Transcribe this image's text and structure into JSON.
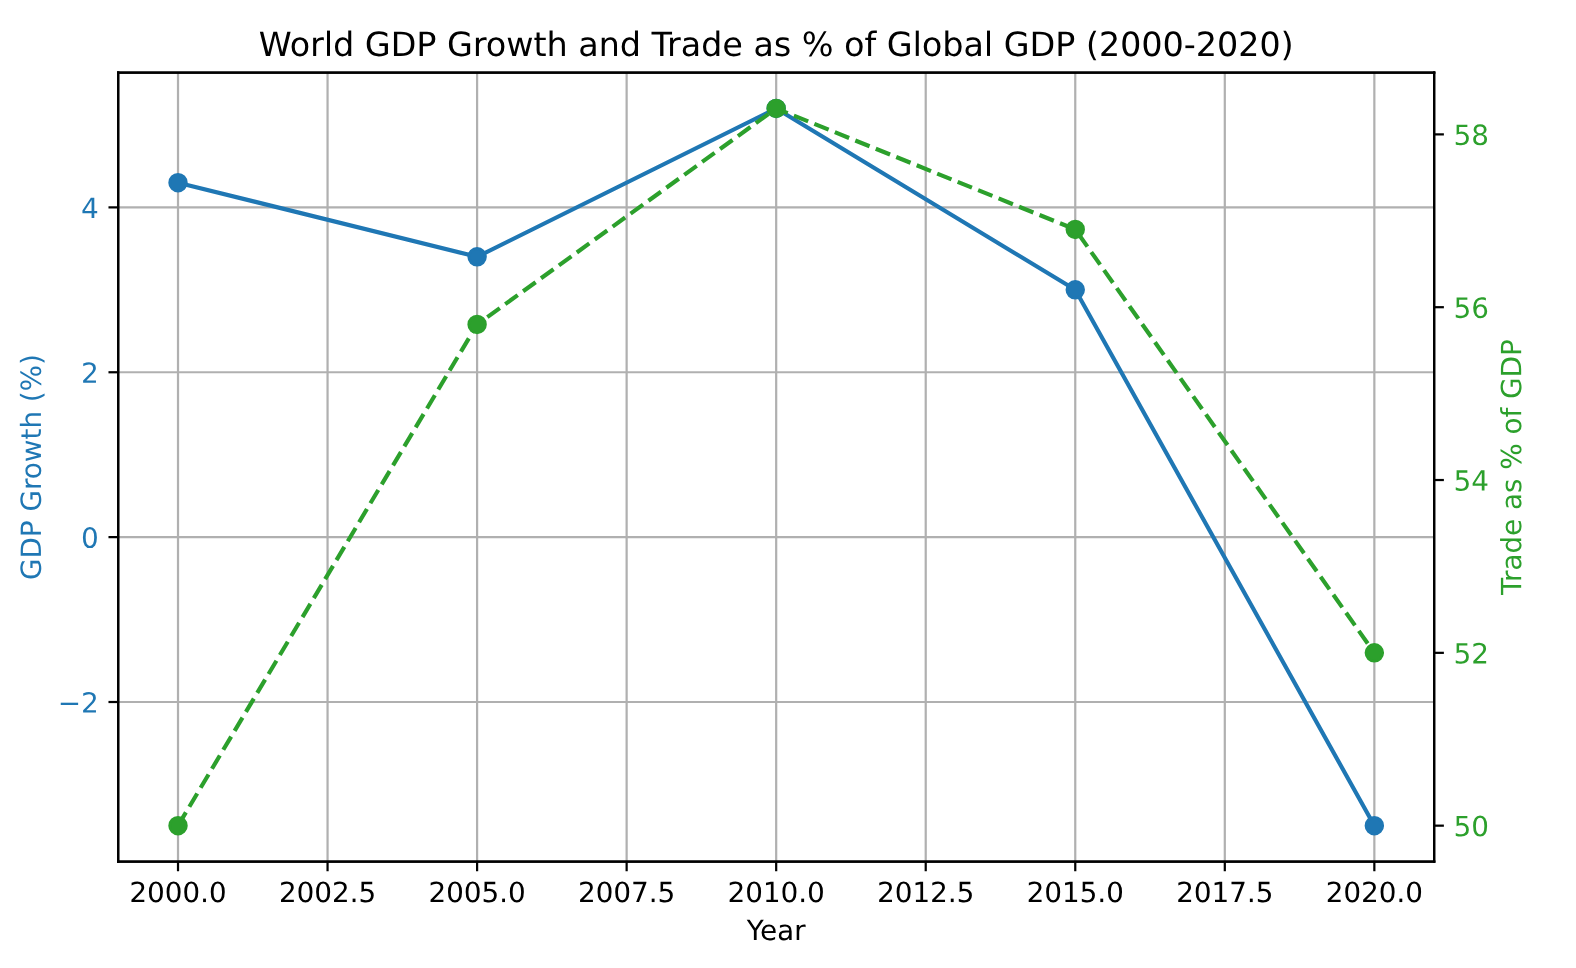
{
  "chart_data": {
    "type": "line",
    "title": "World GDP Growth and Trade as % of Global GDP (2000-2020)",
    "xlabel": "Year",
    "ylabel": "GDP Growth (%)",
    "y2label": "Trade as % of GDP",
    "x": [
      2000,
      2005,
      2010,
      2015,
      2020
    ],
    "series": [
      {
        "color": "#1f77b4",
        "values": [
          4.3,
          3.4,
          5.2,
          3.0,
          -3.5
        ],
        "line_style": "solid",
        "marker": "circle"
      },
      {
        "color": "#2ca02c",
        "values": [
          50.0,
          55.8,
          58.3,
          56.9,
          52.0
        ],
        "axis": "y2",
        "line_style": "dashed",
        "marker": "circle"
      }
    ],
    "xlim": [
      1999,
      2021
    ],
    "xticks": [
      {
        "value": 2000,
        "label": "2000.0"
      },
      {
        "value": 2002.5,
        "label": "2002.5"
      },
      {
        "value": 2005,
        "label": "2005.0"
      },
      {
        "value": 2007.5,
        "label": "2007.5"
      },
      {
        "value": 2010,
        "label": "2010.0"
      },
      {
        "value": 2012.5,
        "label": "2012.5"
      },
      {
        "value": 2015,
        "label": "2015.0"
      },
      {
        "value": 2017.5,
        "label": "2017.5"
      },
      {
        "value": 2020,
        "label": "2020.0"
      }
    ],
    "ylim": [
      -3.935,
      5.635
    ],
    "yticks": [
      {
        "value": -2,
        "label": "−2"
      },
      0,
      2,
      4
    ],
    "y2lim": [
      49.585,
      58.715
    ],
    "y2ticks": [
      50,
      52,
      54,
      56,
      58
    ],
    "grid": true,
    "legend": false
  }
}
